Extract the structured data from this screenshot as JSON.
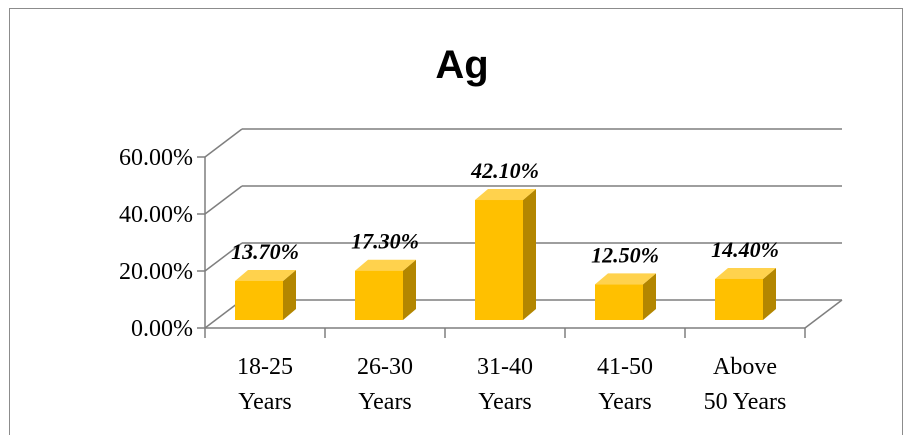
{
  "chart_data": {
    "type": "bar",
    "title": "Ag",
    "categories": [
      [
        "18-25",
        "Years"
      ],
      [
        "26-30",
        "Years"
      ],
      [
        "31-40",
        "Years"
      ],
      [
        "41-50",
        "Years"
      ],
      [
        "Above",
        "50 Years"
      ]
    ],
    "values": [
      13.7,
      17.3,
      42.1,
      12.5,
      14.4
    ],
    "data_labels": [
      "13.70%",
      "17.30%",
      "42.10%",
      "12.50%",
      "14.40%"
    ],
    "y_ticks": [
      "0.00%",
      "20.00%",
      "40.00%",
      "60.00%"
    ],
    "ylim": [
      0,
      60
    ],
    "grid": true,
    "style_3d": true,
    "colors": {
      "bar_front": "#FFC000",
      "bar_side": "#B38600",
      "bar_top": "#FFD24D",
      "grid": "#7f7f7f",
      "axis": "#7f7f7f"
    }
  }
}
